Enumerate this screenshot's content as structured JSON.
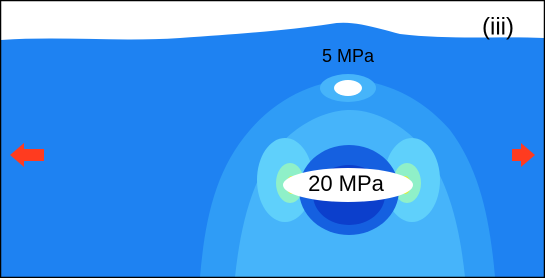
{
  "panel_label": "(iii)",
  "annotations": [
    {
      "text": "5 MPa"
    },
    {
      "text": "20 MPa"
    }
  ]
}
